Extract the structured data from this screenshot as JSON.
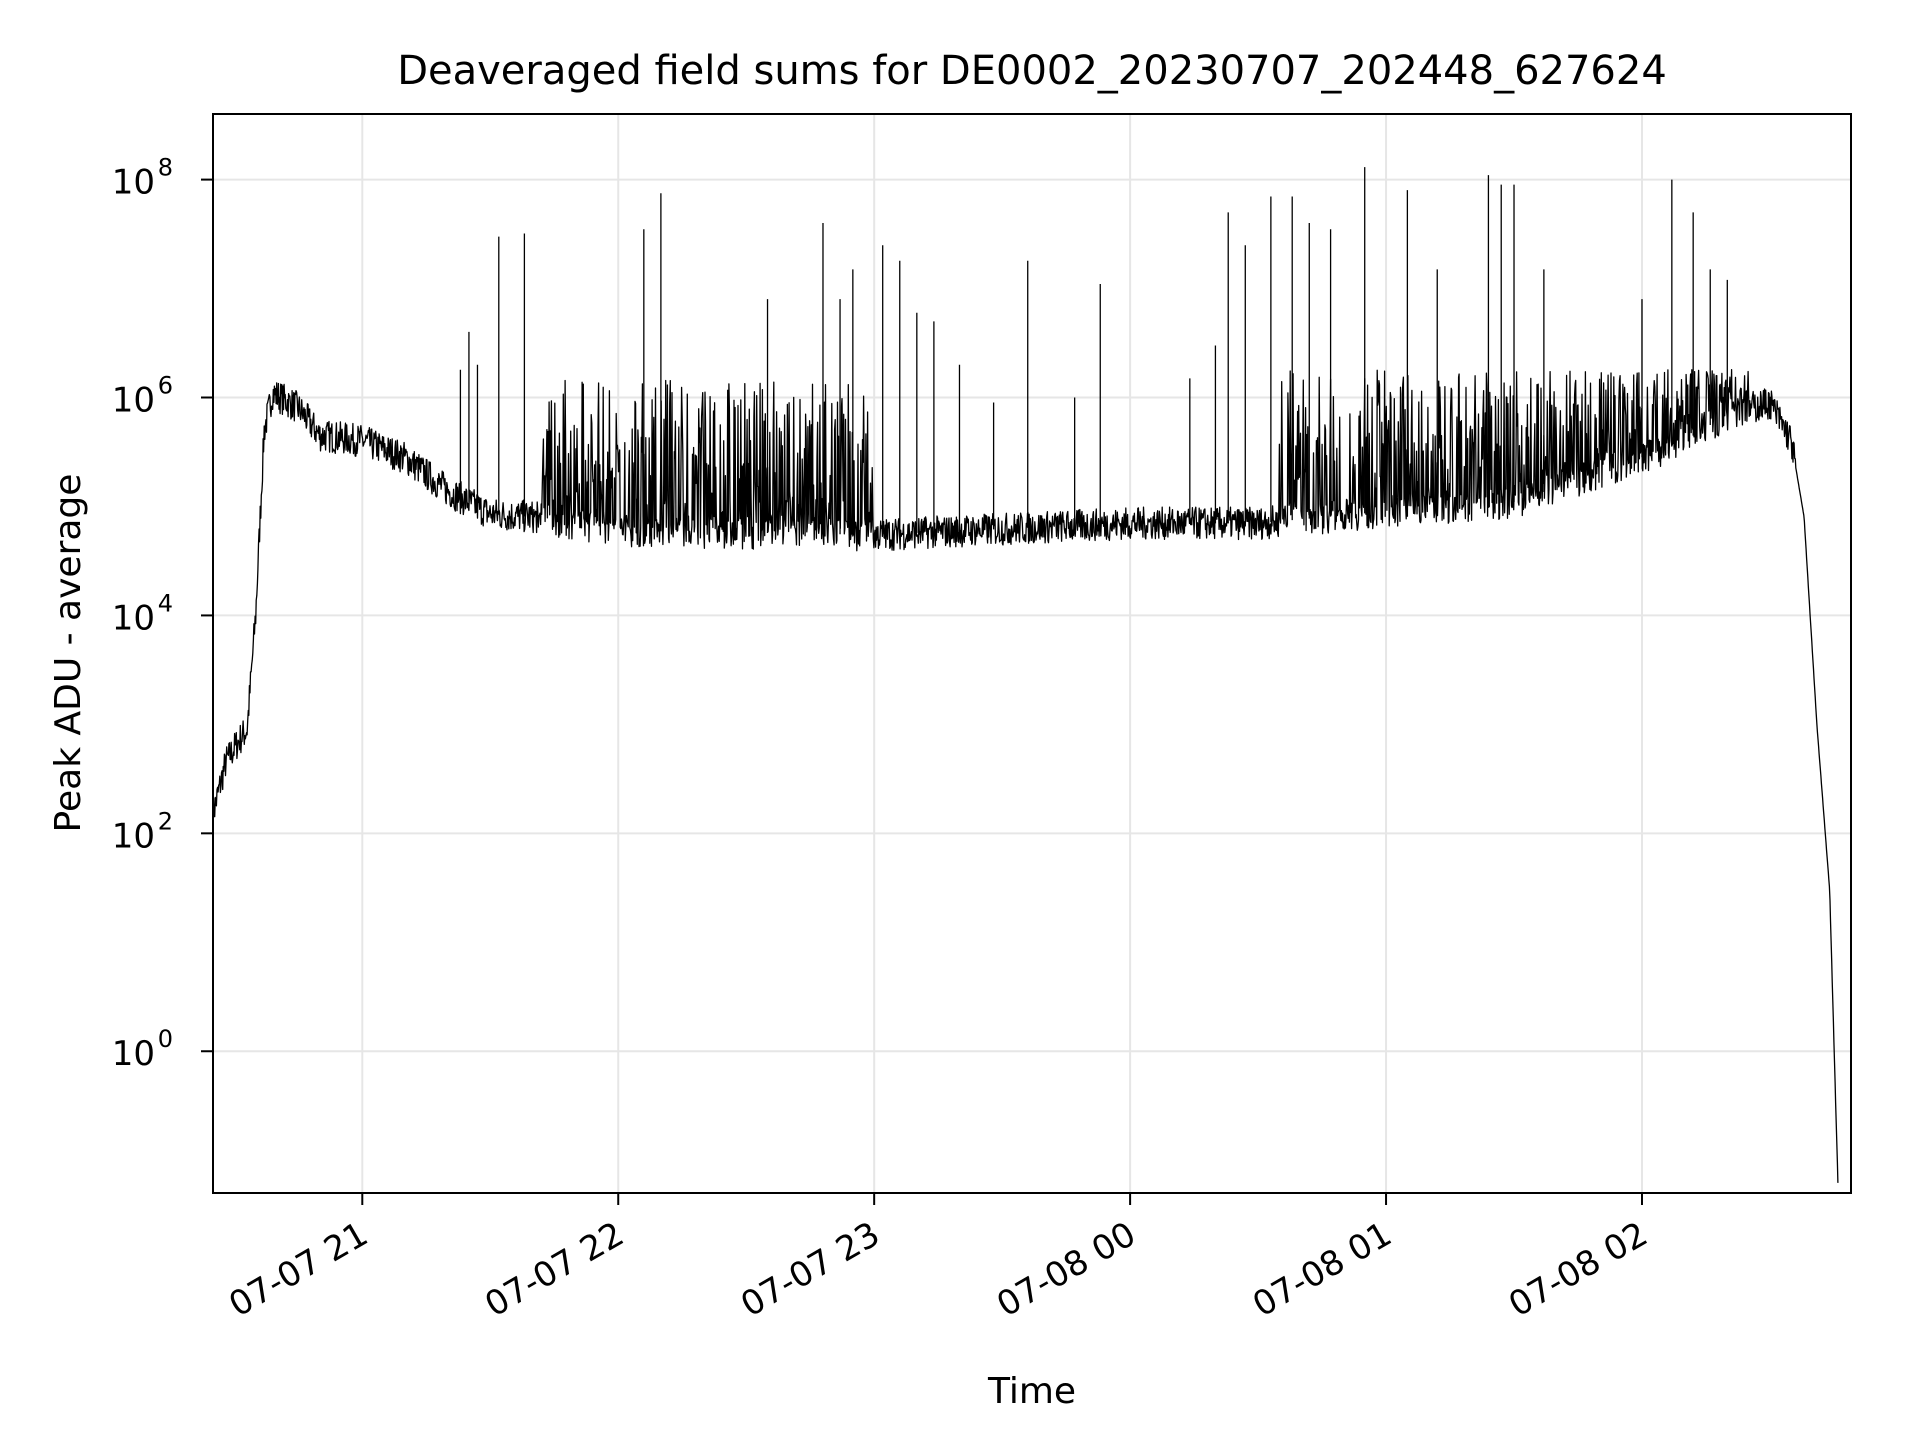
{
  "chart_data": {
    "type": "line",
    "title": "Deaveraged field sums for DE0002_20230707_202448_627624",
    "xlabel": "Time",
    "ylabel": "Peak ADU - average",
    "x_range": [
      "2023-07-07 20:25",
      "2023-07-08 02:49"
    ],
    "yscale": "log",
    "ylim": [
      0.05,
      400000000
    ],
    "grid": true,
    "line_color": "#000000",
    "x_ticks": [
      "07-07 21",
      "07-07 22",
      "07-07 23",
      "07-08 00",
      "07-08 01",
      "07-08 02"
    ],
    "x_tick_times": [
      "2023-07-07 21:00",
      "2023-07-07 22:00",
      "2023-07-07 23:00",
      "2023-07-08 00:00",
      "2023-07-08 01:00",
      "2023-07-08 02:00"
    ],
    "y_ticks": [
      {
        "value": 1,
        "base": "10",
        "exp": "0"
      },
      {
        "value": 100,
        "base": "10",
        "exp": "2"
      },
      {
        "value": 10000,
        "base": "10",
        "exp": "4"
      },
      {
        "value": 1000000,
        "base": "10",
        "exp": "6"
      },
      {
        "value": 100000000,
        "base": "10",
        "exp": "8"
      }
    ],
    "baseline": [
      {
        "t": "2023-07-07 20:25",
        "y": 150
      },
      {
        "t": "2023-07-07 20:28",
        "y": 450
      },
      {
        "t": "2023-07-07 20:31",
        "y": 700
      },
      {
        "t": "2023-07-07 20:33",
        "y": 900
      },
      {
        "t": "2023-07-07 20:35",
        "y": 10000
      },
      {
        "t": "2023-07-07 20:37",
        "y": 500000
      },
      {
        "t": "2023-07-07 20:39",
        "y": 1100000
      },
      {
        "t": "2023-07-07 20:45",
        "y": 800000
      },
      {
        "t": "2023-07-07 20:50",
        "y": 450000
      },
      {
        "t": "2023-07-07 21:00",
        "y": 400000
      },
      {
        "t": "2023-07-07 21:10",
        "y": 280000
      },
      {
        "t": "2023-07-07 21:20",
        "y": 140000
      },
      {
        "t": "2023-07-07 21:30",
        "y": 85000
      },
      {
        "t": "2023-07-07 21:40",
        "y": 80000
      },
      {
        "t": "2023-07-07 22:00",
        "y": 60000
      },
      {
        "t": "2023-07-07 23:00",
        "y": 55000
      },
      {
        "t": "2023-07-08 00:00",
        "y": 70000
      },
      {
        "t": "2023-07-08 00:30",
        "y": 70000
      },
      {
        "t": "2023-07-08 01:00",
        "y": 90000
      },
      {
        "t": "2023-07-08 01:30",
        "y": 110000
      },
      {
        "t": "2023-07-08 01:50",
        "y": 200000
      },
      {
        "t": "2023-07-08 02:10",
        "y": 400000
      },
      {
        "t": "2023-07-08 02:20",
        "y": 700000
      },
      {
        "t": "2023-07-08 02:30",
        "y": 900000
      },
      {
        "t": "2023-07-08 02:35",
        "y": 400000
      },
      {
        "t": "2023-07-08 02:38",
        "y": 80000
      },
      {
        "t": "2023-07-08 02:41",
        "y": 1000
      },
      {
        "t": "2023-07-08 02:44",
        "y": 30
      },
      {
        "t": "2023-07-08 02:46",
        "y": 0.05
      }
    ],
    "dense_bands": [
      {
        "start": "2023-07-07 21:41",
        "end": "2023-07-07 23:00",
        "top": 1500000
      },
      {
        "start": "2023-07-08 00:35",
        "end": "2023-07-08 02:25",
        "top": 1800000
      }
    ],
    "spikes": [
      {
        "t": "2023-07-07 21:23",
        "y": 1800000
      },
      {
        "t": "2023-07-07 21:25",
        "y": 4000000
      },
      {
        "t": "2023-07-07 21:27",
        "y": 2000000
      },
      {
        "t": "2023-07-07 21:32",
        "y": 30000000
      },
      {
        "t": "2023-07-07 21:38",
        "y": 32000000
      },
      {
        "t": "2023-07-07 22:06",
        "y": 35000000
      },
      {
        "t": "2023-07-07 22:10",
        "y": 75000000
      },
      {
        "t": "2023-07-07 22:35",
        "y": 8000000
      },
      {
        "t": "2023-07-07 22:48",
        "y": 40000000
      },
      {
        "t": "2023-07-07 22:52",
        "y": 8000000
      },
      {
        "t": "2023-07-07 22:55",
        "y": 15000000
      },
      {
        "t": "2023-07-07 23:02",
        "y": 25000000
      },
      {
        "t": "2023-07-07 23:06",
        "y": 18000000
      },
      {
        "t": "2023-07-07 23:10",
        "y": 6000000
      },
      {
        "t": "2023-07-07 23:14",
        "y": 5000000
      },
      {
        "t": "2023-07-07 23:20",
        "y": 2000000
      },
      {
        "t": "2023-07-07 23:28",
        "y": 900000
      },
      {
        "t": "2023-07-07 23:36",
        "y": 18000000
      },
      {
        "t": "2023-07-07 23:47",
        "y": 1000000
      },
      {
        "t": "2023-07-07 23:53",
        "y": 11000000
      },
      {
        "t": "2023-07-08 00:14",
        "y": 1500000
      },
      {
        "t": "2023-07-08 00:20",
        "y": 3000000
      },
      {
        "t": "2023-07-08 00:23",
        "y": 50000000
      },
      {
        "t": "2023-07-08 00:27",
        "y": 25000000
      },
      {
        "t": "2023-07-08 00:33",
        "y": 70000000
      },
      {
        "t": "2023-07-08 00:38",
        "y": 70000000
      },
      {
        "t": "2023-07-08 00:42",
        "y": 40000000
      },
      {
        "t": "2023-07-08 00:47",
        "y": 35000000
      },
      {
        "t": "2023-07-08 00:55",
        "y": 130000000
      },
      {
        "t": "2023-07-08 01:05",
        "y": 80000000
      },
      {
        "t": "2023-07-08 01:12",
        "y": 15000000
      },
      {
        "t": "2023-07-08 01:24",
        "y": 110000000
      },
      {
        "t": "2023-07-08 01:27",
        "y": 90000000
      },
      {
        "t": "2023-07-08 01:30",
        "y": 90000000
      },
      {
        "t": "2023-07-08 01:37",
        "y": 15000000
      },
      {
        "t": "2023-07-08 02:00",
        "y": 8000000
      },
      {
        "t": "2023-07-08 02:07",
        "y": 100000000
      },
      {
        "t": "2023-07-08 02:12",
        "y": 50000000
      },
      {
        "t": "2023-07-08 02:16",
        "y": 15000000
      },
      {
        "t": "2023-07-08 02:20",
        "y": 12000000
      }
    ]
  }
}
